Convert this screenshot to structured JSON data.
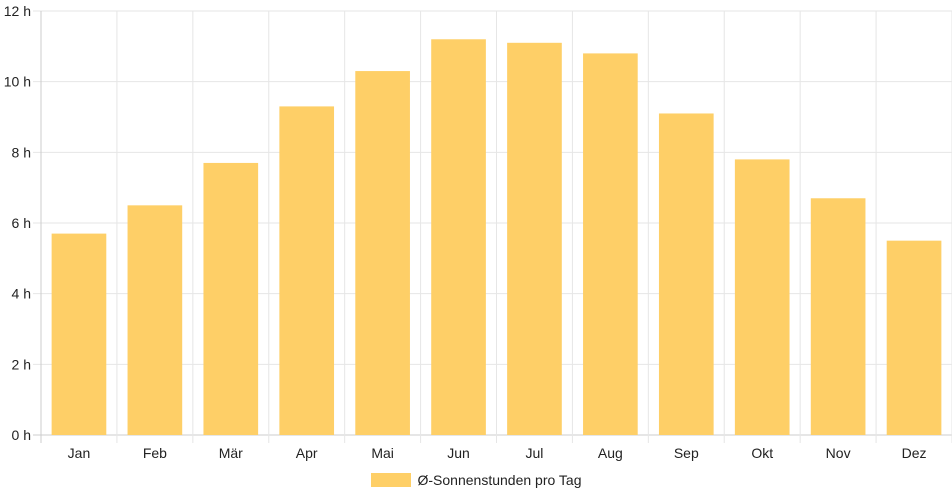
{
  "chart_data": {
    "type": "bar",
    "categories": [
      "Jan",
      "Feb",
      "Mär",
      "Apr",
      "Mai",
      "Jun",
      "Jul",
      "Aug",
      "Sep",
      "Okt",
      "Nov",
      "Dez"
    ],
    "series": [
      {
        "name": "Ø-Sonnenstunden pro Tag",
        "values": [
          5.7,
          6.5,
          7.7,
          9.3,
          10.3,
          11.2,
          11.1,
          10.8,
          9.1,
          7.8,
          6.7,
          5.5
        ]
      }
    ],
    "yticks": [
      "0 h",
      "2 h",
      "4 h",
      "6 h",
      "8 h",
      "10 h",
      "12 h"
    ],
    "ylim": [
      0,
      12
    ],
    "grid": true,
    "legend_position": "bottom",
    "bar_color": "#fecf67",
    "grid_color": "#e6e6e6"
  }
}
